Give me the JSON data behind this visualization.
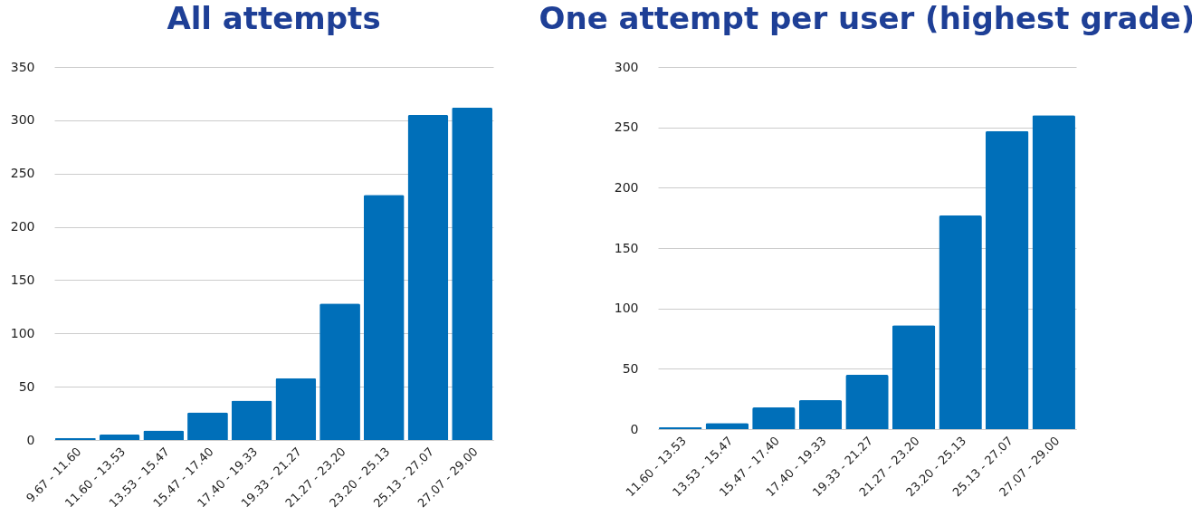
{
  "chart_data": [
    {
      "type": "bar",
      "title": "All attempts",
      "categories": [
        "9.67 - 11.60",
        "11.60 - 13.53",
        "13.53 - 15.47",
        "15.47 - 17.40",
        "17.40 - 19.33",
        "19.33 - 21.27",
        "21.27 - 23.20",
        "23.20 - 25.13",
        "25.13 - 27.07",
        "27.07 - 29.00"
      ],
      "values": [
        2,
        5,
        9,
        26,
        37,
        58,
        128,
        230,
        305,
        312
      ],
      "color": "#006fb9",
      "ylim": [
        0,
        350
      ],
      "yticks": [
        0,
        50,
        100,
        150,
        200,
        250,
        300,
        350
      ],
      "grid": "y"
    },
    {
      "type": "bar",
      "title": "One attempt per user (highest grade)",
      "categories": [
        "11.60 - 13.53",
        "13.53 - 15.47",
        "15.47 - 17.40",
        "17.40 - 19.33",
        "19.33 - 21.27",
        "21.27 - 23.20",
        "23.20 - 25.13",
        "25.13 - 27.07",
        "27.07 - 29.00"
      ],
      "values": [
        1.5,
        5,
        18,
        24,
        45,
        86,
        177,
        247,
        260
      ],
      "color": "#006fb9",
      "ylim": [
        0,
        300
      ],
      "yticks": [
        0,
        50,
        100,
        150,
        200,
        250,
        300
      ],
      "grid": "y"
    }
  ]
}
